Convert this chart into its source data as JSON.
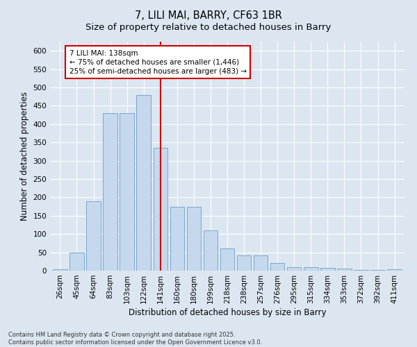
{
  "title": "7, LILI MAI, BARRY, CF63 1BR",
  "subtitle": "Size of property relative to detached houses in Barry",
  "xlabel": "Distribution of detached houses by size in Barry",
  "ylabel": "Number of detached properties",
  "categories": [
    "26sqm",
    "45sqm",
    "64sqm",
    "83sqm",
    "103sqm",
    "122sqm",
    "141sqm",
    "160sqm",
    "180sqm",
    "199sqm",
    "218sqm",
    "238sqm",
    "257sqm",
    "276sqm",
    "295sqm",
    "315sqm",
    "334sqm",
    "353sqm",
    "372sqm",
    "392sqm",
    "411sqm"
  ],
  "values": [
    3,
    50,
    190,
    430,
    430,
    480,
    335,
    175,
    175,
    110,
    60,
    42,
    42,
    20,
    10,
    10,
    8,
    5,
    2,
    1,
    3
  ],
  "bar_color": "#c5d8ed",
  "bar_edge_color": "#6a9fc8",
  "vline_x_index": 6,
  "vline_color": "#cc0000",
  "annotation_line1": "7 LILI MAI: 138sqm",
  "annotation_line2": "← 75% of detached houses are smaller (1,446)",
  "annotation_line3": "25% of semi-detached houses are larger (483) →",
  "annotation_box_color": "#ffffff",
  "annotation_box_edge": "#cc0000",
  "ylim": [
    0,
    625
  ],
  "yticks": [
    0,
    50,
    100,
    150,
    200,
    250,
    300,
    350,
    400,
    450,
    500,
    550,
    600
  ],
  "bg_color": "#dce6f0",
  "footer": "Contains HM Land Registry data © Crown copyright and database right 2025.\nContains public sector information licensed under the Open Government Licence v3.0.",
  "title_fontsize": 10.5,
  "subtitle_fontsize": 9.5,
  "axis_label_fontsize": 8.5,
  "tick_fontsize": 7.5,
  "annotation_fontsize": 7.5,
  "footer_fontsize": 6.0
}
